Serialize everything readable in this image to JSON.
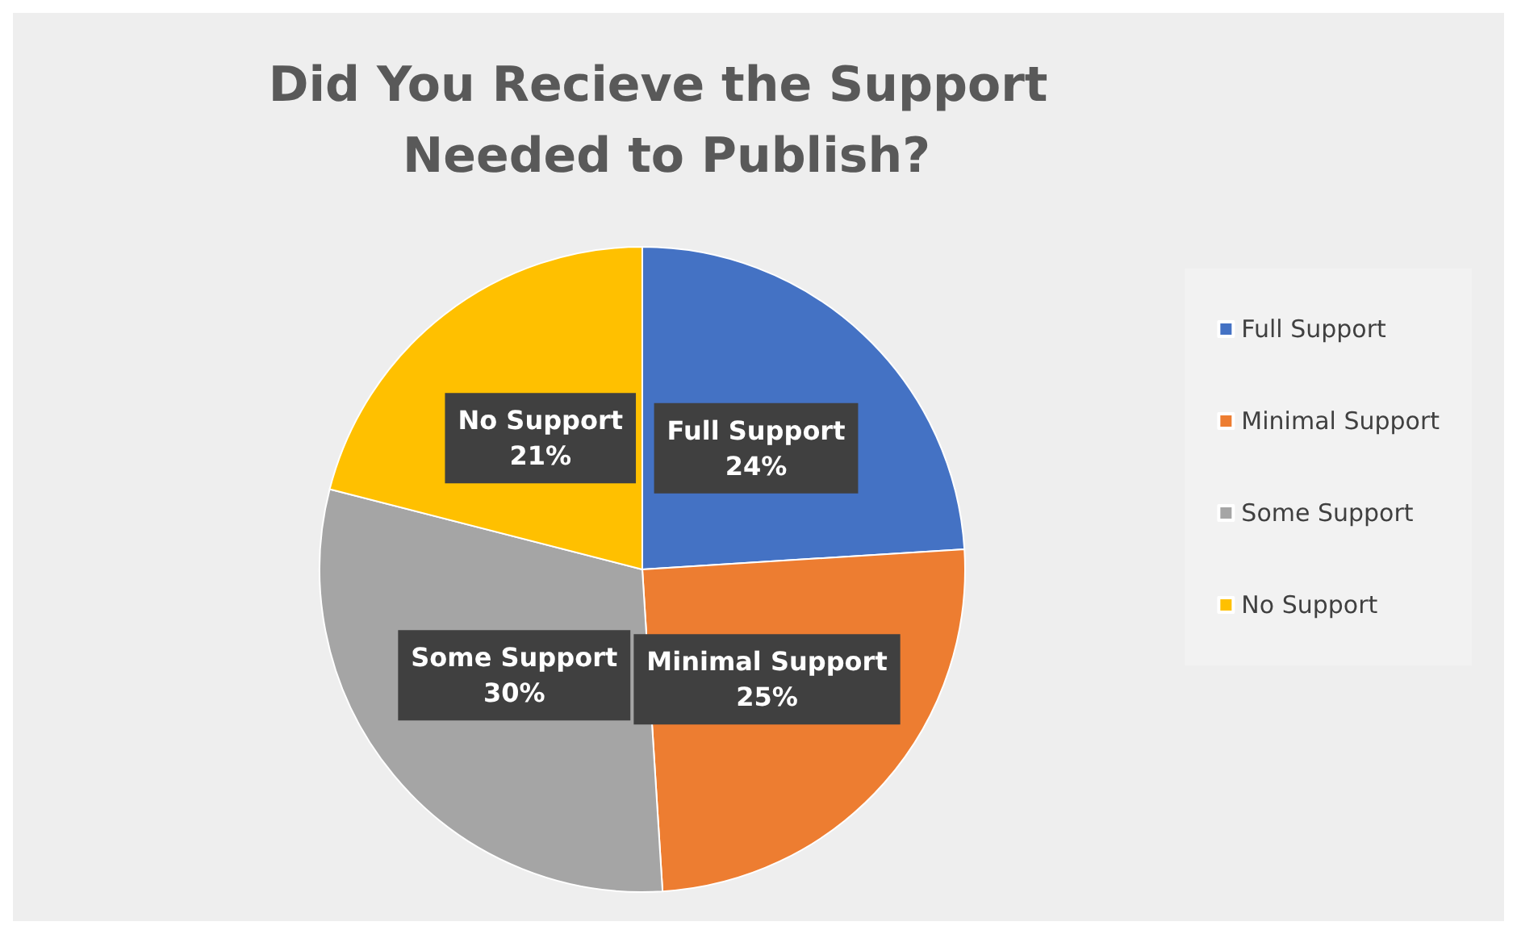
{
  "chart_data": {
    "type": "pie",
    "title": "Did You Recieve the Support Needed to Publish?",
    "categories": [
      "Full Support",
      "Minimal Support",
      "Some Support",
      "No Support"
    ],
    "values": [
      24,
      25,
      30,
      21
    ],
    "colors": [
      "#4472c4",
      "#ed7d31",
      "#a5a5a5",
      "#ffc000"
    ],
    "value_labels": [
      "24%",
      "25%",
      "30%",
      "21%"
    ],
    "legend": "right"
  }
}
